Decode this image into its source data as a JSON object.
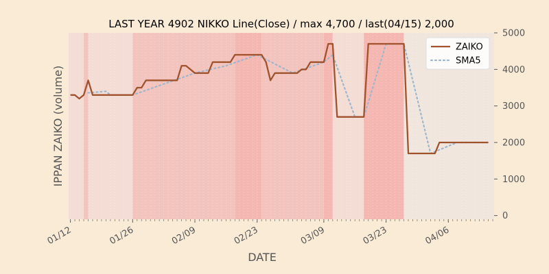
{
  "chart_data": {
    "type": "line",
    "title": "LAST YEAR 4902 NIKKO Line(Close) / max 4,700 / last(04/15) 2,000",
    "xlabel": "DATE",
    "ylabel": "IPPAN ZAIKO (volume)",
    "ylim": [
      -100,
      5000
    ],
    "yticks": [
      0,
      1000,
      2000,
      3000,
      4000,
      5000
    ],
    "xticks": [
      "01/12",
      "01/26",
      "02/09",
      "02/23",
      "03/09",
      "03/23",
      "04/06"
    ],
    "legend_position": "top-right",
    "grid": true,
    "colors": {
      "zaiko": "#a0522d",
      "sma5": "#9fb6cd",
      "band_dark": "#f5b7b1",
      "band_mid": "#f2c4bd",
      "band_light": "#f3ddd5",
      "band_pale": "#f0e6de"
    },
    "series": [
      {
        "name": "ZAIKO",
        "points": [
          [
            "01/12",
            3300
          ],
          [
            "01/13",
            3300
          ],
          [
            "01/14",
            3200
          ],
          [
            "01/15",
            3300
          ],
          [
            "01/16",
            3700
          ],
          [
            "01/17",
            3300
          ],
          [
            "01/26",
            3300
          ],
          [
            "01/27",
            3500
          ],
          [
            "01/28",
            3500
          ],
          [
            "01/29",
            3700
          ],
          [
            "02/05",
            3700
          ],
          [
            "02/06",
            4100
          ],
          [
            "02/07",
            4100
          ],
          [
            "02/09",
            3900
          ],
          [
            "02/12",
            3900
          ],
          [
            "02/13",
            4200
          ],
          [
            "02/17",
            4200
          ],
          [
            "02/18",
            4400
          ],
          [
            "02/24",
            4400
          ],
          [
            "02/25",
            4200
          ],
          [
            "02/26",
            3700
          ],
          [
            "02/27",
            3900
          ],
          [
            "03/03",
            3900
          ],
          [
            "03/04",
            4000
          ],
          [
            "03/05",
            4000
          ],
          [
            "03/06",
            4200
          ],
          [
            "03/09",
            4200
          ],
          [
            "03/10",
            4700
          ],
          [
            "03/11",
            4700
          ],
          [
            "03/12",
            2700
          ],
          [
            "03/18",
            2700
          ],
          [
            "03/19",
            4700
          ],
          [
            "03/27",
            4700
          ],
          [
            "03/28",
            1700
          ],
          [
            "04/03",
            1700
          ],
          [
            "04/04",
            2000
          ],
          [
            "04/15",
            2000
          ]
        ]
      },
      {
        "name": "SMA5",
        "points": [
          [
            "01/16",
            3360
          ],
          [
            "01/20",
            3400
          ],
          [
            "01/21",
            3300
          ],
          [
            "01/26",
            3300
          ],
          [
            "02/02",
            3600
          ],
          [
            "02/09",
            3900
          ],
          [
            "02/16",
            4100
          ],
          [
            "02/23",
            4400
          ],
          [
            "03/02",
            3900
          ],
          [
            "03/09",
            4200
          ],
          [
            "03/11",
            4400
          ],
          [
            "03/16",
            2700
          ],
          [
            "03/18",
            2700
          ],
          [
            "03/23",
            4700
          ],
          [
            "03/27",
            4700
          ],
          [
            "04/02",
            1700
          ],
          [
            "04/06",
            1900
          ],
          [
            "04/08",
            2000
          ],
          [
            "04/15",
            2000
          ]
        ]
      }
    ],
    "background_bands": [
      {
        "start": "01/11",
        "end": "01/12",
        "level": "light"
      },
      {
        "start": "01/12",
        "end": "01/15",
        "level": "light"
      },
      {
        "start": "01/15",
        "end": "01/16",
        "level": "mid"
      },
      {
        "start": "01/16",
        "end": "01/26",
        "level": "light"
      },
      {
        "start": "01/26",
        "end": "02/18",
        "level": "mid"
      },
      {
        "start": "02/18",
        "end": "02/24",
        "level": "dark"
      },
      {
        "start": "02/24",
        "end": "03/09",
        "level": "mid"
      },
      {
        "start": "03/09",
        "end": "03/11",
        "level": "dark"
      },
      {
        "start": "03/11",
        "end": "03/18",
        "level": "light"
      },
      {
        "start": "03/18",
        "end": "03/27",
        "level": "dark"
      },
      {
        "start": "03/27",
        "end": "04/16",
        "level": "pale"
      }
    ]
  }
}
